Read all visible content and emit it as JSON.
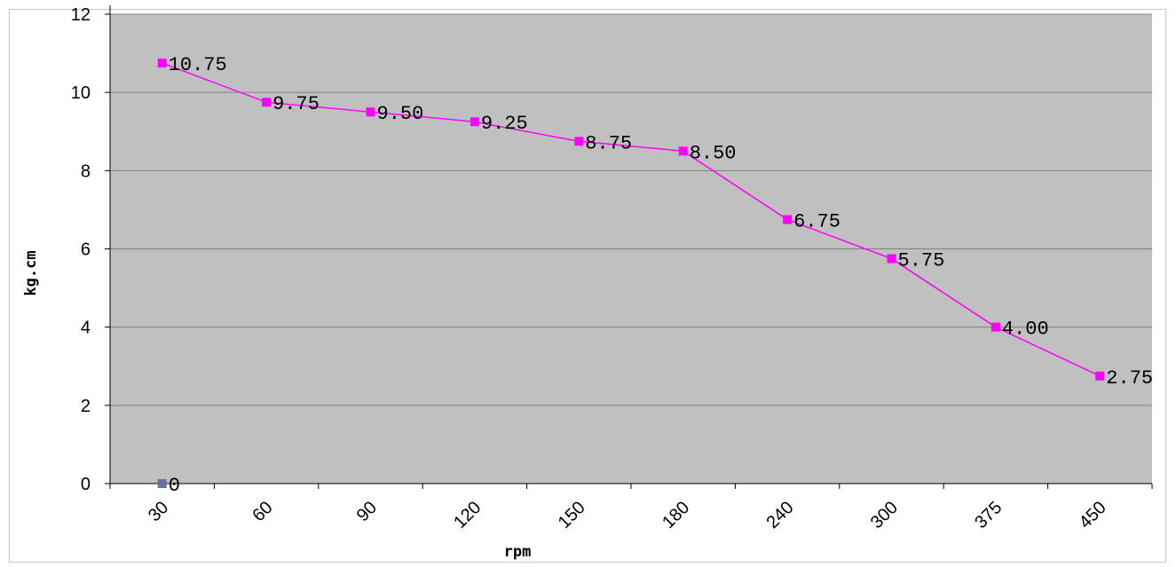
{
  "chart_data": {
    "type": "line",
    "title": "",
    "xlabel": "rpm",
    "ylabel": "kg.cm",
    "categories": [
      "30",
      "60",
      "90",
      "120",
      "150",
      "180",
      "240",
      "300",
      "375",
      "450"
    ],
    "series": [
      {
        "values": [
          10.75,
          9.75,
          9.5,
          9.25,
          8.75,
          8.5,
          6.75,
          5.75,
          4.0,
          2.75
        ],
        "labels": [
          "10.75",
          "9.75",
          "9.50",
          "9.25",
          "8.75",
          "8.50",
          "6.75",
          "5.75",
          "4.00",
          "2.75"
        ],
        "color": "#ff00ff"
      },
      {
        "values": [
          0,
          null,
          null,
          null,
          null,
          null,
          null,
          null,
          null,
          null
        ],
        "labels": [
          "0",
          "",
          "",
          "",
          "",
          "",
          "",
          "",
          "",
          ""
        ],
        "color": "#6a6f9c"
      }
    ],
    "ylim": [
      0,
      12
    ],
    "yticks": [
      "0",
      "2",
      "4",
      "6",
      "8",
      "10",
      "12"
    ],
    "grid": true,
    "legend": "none",
    "colors": {
      "plot_background": "#c0c0c0",
      "gridline": "#808080"
    }
  }
}
